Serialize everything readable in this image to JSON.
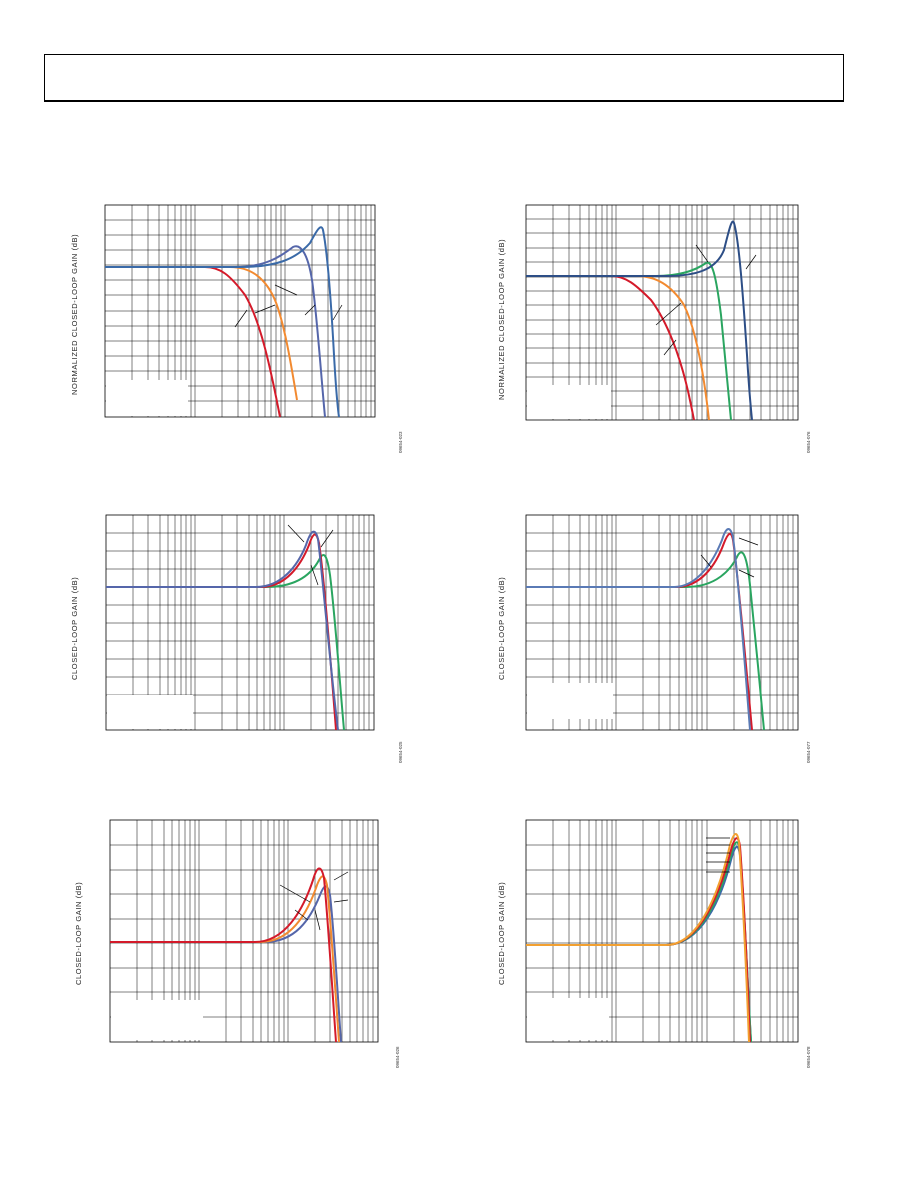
{
  "page": {
    "header": ""
  },
  "charts": [
    {
      "id": "c1",
      "ylabel": "NORMALIZED CLOSED-LOOP GAIN (dB)",
      "code": "09654-023",
      "series": [
        {
          "color": "#d41a2a",
          "values": [
            0,
            0,
            0,
            0,
            0,
            -0.1,
            -0.5,
            -2,
            -5,
            -9,
            -13
          ]
        },
        {
          "color": "#f28a30",
          "values": [
            0,
            0,
            0,
            0,
            0,
            0,
            0,
            -0.3,
            -2,
            -6,
            -10,
            -14
          ]
        },
        {
          "color": "#5566aa",
          "values": [
            0,
            0,
            0,
            0,
            0,
            0.5,
            1.5,
            2.5,
            1.5,
            -6,
            -14
          ]
        },
        {
          "color": "#3a6aa8",
          "values": [
            0,
            0,
            0,
            0,
            0,
            0.3,
            1,
            3,
            4.5,
            -2,
            -14
          ]
        }
      ]
    },
    {
      "id": "c2",
      "ylabel": "NORMALIZED CLOSED-LOOP GAIN (dB)",
      "code": "09654-076",
      "series": [
        {
          "color": "#d41a2a",
          "values": [
            0,
            0,
            0,
            0,
            -0.5,
            -2,
            -5,
            -9,
            -13
          ]
        },
        {
          "color": "#f28a30",
          "values": [
            0,
            0,
            0,
            0,
            0,
            -0.3,
            -2,
            -6,
            -11,
            -14
          ]
        },
        {
          "color": "#2aa560",
          "values": [
            0,
            0,
            0,
            0,
            0,
            0.5,
            1.5,
            -4,
            -14
          ]
        },
        {
          "color": "#2d4e86",
          "values": [
            0,
            0,
            0,
            0,
            0,
            0.5,
            2,
            6.5,
            -14
          ]
        }
      ]
    },
    {
      "id": "c3",
      "ylabel": "CLOSED-LOOP GAIN (dB)",
      "code": "09654-025",
      "series": [
        {
          "color": "#5566aa",
          "values": [
            0,
            0,
            0,
            0,
            0,
            0.5,
            3,
            6,
            -2,
            -17
          ]
        },
        {
          "color": "#d41a2a",
          "values": [
            0,
            0,
            0,
            0,
            0,
            0.5,
            3,
            6,
            -2,
            -17
          ]
        },
        {
          "color": "#2aa560",
          "values": [
            0,
            0,
            0,
            0,
            0,
            0.3,
            2,
            4,
            -8,
            -17
          ]
        }
      ]
    },
    {
      "id": "c4",
      "ylabel": "CLOSED-LOOP GAIN (dB)",
      "code": "09654-077",
      "series": [
        {
          "color": "#5a7ab5",
          "values": [
            0,
            0,
            0,
            0,
            0,
            0.5,
            3,
            6,
            -3,
            -16
          ]
        },
        {
          "color": "#d41a2a",
          "values": [
            0,
            0,
            0,
            0,
            0,
            0.5,
            3,
            5,
            -3,
            -16
          ]
        },
        {
          "color": "#2aa560",
          "values": [
            0,
            0,
            0,
            0,
            0,
            0.3,
            2,
            4,
            -8,
            -16
          ]
        }
      ]
    },
    {
      "id": "c5",
      "ylabel": "CLOSED-LOOP GAIN (dB)",
      "code": "09654-026",
      "series": [
        {
          "color": "#d41a2a",
          "values": [
            0,
            0,
            0,
            0,
            0,
            0.5,
            3,
            6,
            -4,
            -16
          ]
        },
        {
          "color": "#f28a30",
          "values": [
            0,
            0,
            0,
            0,
            0,
            0.5,
            2.5,
            5,
            -5,
            -16
          ]
        },
        {
          "color": "#5566aa",
          "values": [
            0,
            0,
            0,
            0,
            0,
            0.3,
            2,
            4,
            -6,
            -16
          ]
        }
      ]
    },
    {
      "id": "c6",
      "ylabel": "CLOSED-LOOP GAIN (dB)",
      "code": "09654-078",
      "series": [
        {
          "color": "#f2a030",
          "values": [
            0,
            0,
            0,
            0,
            0,
            0.5,
            4,
            10,
            -20
          ]
        },
        {
          "color": "#d41a2a",
          "values": [
            0,
            0,
            0,
            0,
            0,
            0.5,
            3.5,
            9,
            -20
          ]
        },
        {
          "color": "#2aa560",
          "values": [
            0,
            0,
            0,
            0,
            0,
            0.5,
            3,
            8,
            -20
          ]
        },
        {
          "color": "#3a6aa8",
          "values": [
            0,
            0,
            0,
            0,
            0,
            0.5,
            2.5,
            7,
            -20
          ]
        }
      ]
    }
  ]
}
